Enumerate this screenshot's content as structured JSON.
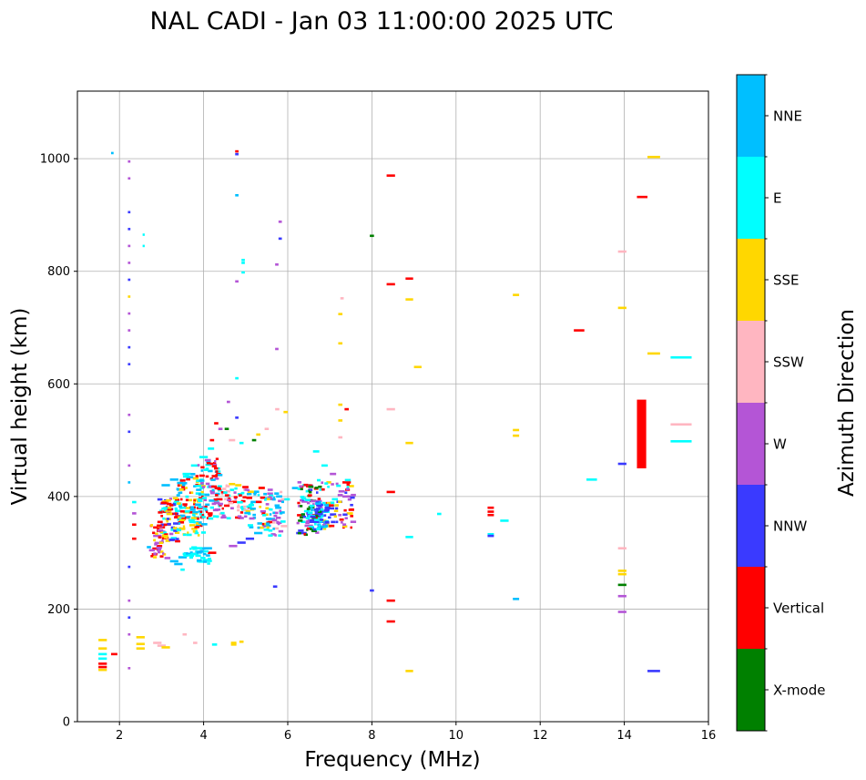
{
  "chart_data": {
    "type": "scatter",
    "title": "NAL CADI - Jan 03 11:00:00 2025 UTC",
    "xlabel": "Frequency (MHz)",
    "ylabel": "Virtual height (km)",
    "xlim": [
      1,
      16
    ],
    "ylim": [
      0,
      1120
    ],
    "xticks": [
      2,
      4,
      6,
      8,
      10,
      12,
      14,
      16
    ],
    "yticks": [
      0,
      200,
      400,
      600,
      800,
      1000
    ],
    "grid": true,
    "colorbar": {
      "label": "Azimuth Direction",
      "position": "right",
      "categories": [
        "X-mode",
        "Vertical",
        "NNW",
        "W",
        "SSW",
        "SSE",
        "E",
        "NNE"
      ],
      "colors": [
        "#008000",
        "#ff0000",
        "#3a3aff",
        "#b455d6",
        "#ffb6c1",
        "#ffd700",
        "#00ffff",
        "#00bfff"
      ]
    },
    "segments_note": "each echo segment: [freq_start_MHz, freq_end_MHz, height_km, category_index]",
    "segments": [
      [
        1.8,
        1.86,
        1010,
        7
      ],
      [
        2.2,
        2.26,
        995,
        3
      ],
      [
        2.2,
        2.26,
        965,
        3
      ],
      [
        2.2,
        2.26,
        905,
        2
      ],
      [
        2.2,
        2.26,
        875,
        2
      ],
      [
        2.2,
        2.26,
        845,
        3
      ],
      [
        2.2,
        2.26,
        815,
        3
      ],
      [
        2.2,
        2.26,
        785,
        2
      ],
      [
        2.2,
        2.26,
        755,
        5
      ],
      [
        2.2,
        2.26,
        725,
        3
      ],
      [
        2.2,
        2.26,
        695,
        3
      ],
      [
        2.2,
        2.26,
        665,
        2
      ],
      [
        2.2,
        2.26,
        635,
        2
      ],
      [
        2.2,
        2.26,
        545,
        3
      ],
      [
        2.2,
        2.26,
        515,
        2
      ],
      [
        2.2,
        2.26,
        455,
        3
      ],
      [
        2.2,
        2.26,
        425,
        7
      ],
      [
        2.2,
        2.26,
        275,
        2
      ],
      [
        2.2,
        2.26,
        215,
        3
      ],
      [
        2.2,
        2.26,
        185,
        2
      ],
      [
        2.2,
        2.26,
        155,
        3
      ],
      [
        2.2,
        2.26,
        95,
        3
      ],
      [
        2.55,
        2.6,
        865,
        6
      ],
      [
        2.55,
        2.6,
        845,
        6
      ],
      [
        4.75,
        4.83,
        1013,
        1
      ],
      [
        4.75,
        4.83,
        1008,
        2
      ],
      [
        4.75,
        4.83,
        935,
        7
      ],
      [
        4.9,
        4.98,
        820,
        6
      ],
      [
        4.9,
        4.98,
        815,
        6
      ],
      [
        4.9,
        4.98,
        798,
        6
      ],
      [
        4.75,
        4.83,
        782,
        3
      ],
      [
        5.78,
        5.86,
        888,
        3
      ],
      [
        5.78,
        5.86,
        858,
        2
      ],
      [
        5.7,
        5.78,
        812,
        3
      ],
      [
        5.7,
        5.78,
        662,
        3
      ],
      [
        4.75,
        4.83,
        610,
        6
      ],
      [
        4.55,
        4.63,
        568,
        3
      ],
      [
        4.75,
        4.83,
        540,
        2
      ],
      [
        7.95,
        8.05,
        863,
        0
      ],
      [
        8.35,
        8.55,
        970,
        1
      ],
      [
        8.35,
        8.55,
        777,
        1
      ],
      [
        8.8,
        8.98,
        787,
        1
      ],
      [
        8.8,
        8.98,
        750,
        5
      ],
      [
        7.25,
        7.33,
        752,
        4
      ],
      [
        7.2,
        7.3,
        724,
        5
      ],
      [
        7.2,
        7.3,
        672,
        5
      ],
      [
        7.2,
        7.3,
        563,
        5
      ],
      [
        7.35,
        7.45,
        555,
        1
      ],
      [
        7.2,
        7.3,
        535,
        5
      ],
      [
        9.0,
        9.18,
        630,
        5
      ],
      [
        8.8,
        8.98,
        495,
        5
      ],
      [
        8.35,
        8.55,
        555,
        4
      ],
      [
        8.35,
        8.55,
        408,
        1
      ],
      [
        8.35,
        8.55,
        215,
        1
      ],
      [
        8.35,
        8.55,
        178,
        1
      ],
      [
        8.8,
        8.98,
        90,
        5
      ],
      [
        8.8,
        8.98,
        328,
        6
      ],
      [
        7.95,
        8.05,
        233,
        2
      ],
      [
        11.35,
        11.5,
        758,
        5
      ],
      [
        11.35,
        11.5,
        518,
        5
      ],
      [
        11.35,
        11.5,
        508,
        5
      ],
      [
        11.35,
        11.5,
        218,
        7
      ],
      [
        12.8,
        13.05,
        695,
        1
      ],
      [
        13.1,
        13.35,
        430,
        6
      ],
      [
        13.85,
        14.05,
        835,
        4
      ],
      [
        13.85,
        14.05,
        735,
        5
      ],
      [
        13.85,
        14.05,
        458,
        2
      ],
      [
        13.85,
        14.05,
        308,
        4
      ],
      [
        13.85,
        14.05,
        268,
        5
      ],
      [
        13.85,
        14.05,
        262,
        5
      ],
      [
        13.85,
        14.05,
        243,
        0
      ],
      [
        13.85,
        14.05,
        223,
        3
      ],
      [
        13.85,
        14.05,
        195,
        3
      ],
      [
        14.3,
        14.55,
        932,
        1
      ],
      [
        14.55,
        14.85,
        1003,
        5
      ],
      [
        14.55,
        14.85,
        654,
        5
      ],
      [
        14.55,
        14.85,
        90,
        2
      ],
      [
        15.1,
        15.6,
        647,
        6
      ],
      [
        15.1,
        15.6,
        528,
        4
      ],
      [
        15.1,
        15.6,
        498,
        6
      ],
      [
        10.75,
        10.9,
        380,
        1
      ],
      [
        10.75,
        10.9,
        373,
        1
      ],
      [
        10.75,
        10.9,
        367,
        1
      ],
      [
        10.75,
        10.9,
        333,
        6
      ],
      [
        10.75,
        10.9,
        330,
        2
      ],
      [
        11.05,
        11.25,
        357,
        6
      ],
      [
        9.55,
        9.65,
        369,
        6
      ],
      [
        1.5,
        1.7,
        145,
        5
      ],
      [
        1.5,
        1.7,
        130,
        5
      ],
      [
        1.5,
        1.7,
        120,
        6
      ],
      [
        1.5,
        1.7,
        112,
        6
      ],
      [
        1.5,
        1.7,
        103,
        1
      ],
      [
        1.5,
        1.7,
        97,
        1
      ],
      [
        1.5,
        1.7,
        92,
        5
      ],
      [
        1.8,
        1.95,
        120,
        1
      ],
      [
        2.4,
        2.6,
        150,
        5
      ],
      [
        2.4,
        2.6,
        138,
        5
      ],
      [
        2.4,
        2.6,
        130,
        5
      ],
      [
        2.8,
        3.0,
        140,
        4
      ],
      [
        2.9,
        3.1,
        135,
        4
      ],
      [
        3.0,
        3.2,
        132,
        5
      ],
      [
        3.5,
        3.6,
        155,
        4
      ],
      [
        3.75,
        3.85,
        140,
        4
      ],
      [
        4.2,
        4.32,
        137,
        6
      ],
      [
        4.65,
        4.78,
        140,
        5
      ],
      [
        4.65,
        4.78,
        137,
        5
      ],
      [
        4.85,
        4.95,
        142,
        5
      ],
      [
        5.65,
        5.75,
        240,
        2
      ],
      [
        2.3,
        2.4,
        390,
        6
      ],
      [
        2.3,
        2.4,
        370,
        3
      ],
      [
        2.3,
        2.4,
        350,
        1
      ],
      [
        2.3,
        2.4,
        325,
        1
      ],
      [
        2.65,
        2.75,
        310,
        7
      ],
      [
        2.8,
        3.0,
        345,
        1
      ],
      [
        2.8,
        3.0,
        330,
        3
      ],
      [
        3.2,
        3.4,
        285,
        7
      ],
      [
        3.4,
        3.6,
        292,
        7
      ],
      [
        3.6,
        3.8,
        298,
        7
      ],
      [
        3.8,
        4.0,
        302,
        7
      ],
      [
        4.0,
        4.2,
        308,
        7
      ],
      [
        4.1,
        4.3,
        300,
        1
      ],
      [
        4.6,
        4.8,
        312,
        3
      ],
      [
        4.8,
        5.0,
        318,
        2
      ],
      [
        5.0,
        5.2,
        325,
        2
      ],
      [
        5.2,
        5.4,
        335,
        7
      ],
      [
        5.4,
        5.6,
        348,
        7
      ],
      [
        5.5,
        5.7,
        360,
        7
      ],
      [
        5.7,
        5.85,
        380,
        7
      ],
      [
        5.9,
        6.05,
        395,
        6
      ],
      [
        6.2,
        6.45,
        335,
        2
      ],
      [
        6.4,
        6.6,
        348,
        3
      ],
      [
        6.6,
        6.85,
        355,
        2
      ],
      [
        6.6,
        6.85,
        365,
        2
      ],
      [
        7.0,
        7.15,
        368,
        2
      ],
      [
        7.4,
        7.55,
        370,
        5
      ],
      [
        7.3,
        7.5,
        425,
        1
      ],
      [
        7.3,
        7.5,
        400,
        3
      ],
      [
        3.0,
        3.2,
        420,
        7
      ],
      [
        3.2,
        3.4,
        430,
        7
      ],
      [
        3.5,
        3.7,
        440,
        6
      ],
      [
        3.7,
        3.9,
        455,
        6
      ],
      [
        3.9,
        4.1,
        470,
        6
      ],
      [
        4.1,
        4.25,
        485,
        6
      ],
      [
        4.15,
        4.25,
        500,
        1
      ],
      [
        4.25,
        4.35,
        530,
        1
      ],
      [
        4.35,
        4.45,
        520,
        3
      ],
      [
        4.5,
        4.6,
        520,
        0
      ],
      [
        4.6,
        4.75,
        500,
        4
      ],
      [
        4.85,
        4.95,
        495,
        6
      ],
      [
        5.15,
        5.25,
        500,
        0
      ],
      [
        5.25,
        5.35,
        510,
        5
      ],
      [
        5.45,
        5.55,
        520,
        4
      ],
      [
        5.7,
        5.8,
        555,
        4
      ],
      [
        5.9,
        6.0,
        550,
        5
      ],
      [
        6.1,
        6.25,
        415,
        7
      ],
      [
        6.35,
        6.55,
        420,
        6
      ],
      [
        6.6,
        6.75,
        480,
        6
      ],
      [
        6.8,
        6.95,
        455,
        6
      ],
      [
        7.0,
        7.15,
        440,
        3
      ],
      [
        7.2,
        7.3,
        505,
        4
      ],
      [
        3.3,
        3.5,
        280,
        7
      ],
      [
        3.45,
        3.55,
        270,
        6
      ],
      [
        4.6,
        4.75,
        422,
        5
      ],
      [
        4.75,
        4.9,
        420,
        5
      ],
      [
        5.3,
        5.45,
        415,
        5
      ],
      [
        5.55,
        5.65,
        405,
        3
      ],
      [
        4.3,
        4.45,
        395,
        1
      ]
    ],
    "dense_clusters_note": "dense echo clusters: [f_min, f_max, h_min, h_max, count, [category indices], seed]",
    "dense_clusters": [
      [
        2.9,
        3.35,
        320,
        400,
        70,
        [
          1,
          6,
          3,
          2,
          5
        ],
        11
      ],
      [
        3.35,
        3.95,
        330,
        440,
        130,
        [
          6,
          7,
          5,
          1
        ],
        12
      ],
      [
        3.85,
        4.35,
        360,
        470,
        80,
        [
          6,
          7,
          1,
          3
        ],
        13
      ],
      [
        4.3,
        4.95,
        360,
        420,
        55,
        [
          1,
          3,
          6,
          4
        ],
        14
      ],
      [
        4.9,
        5.55,
        340,
        420,
        60,
        [
          6,
          7,
          1,
          3,
          5
        ],
        15
      ],
      [
        5.5,
        5.85,
        330,
        410,
        35,
        [
          6,
          3,
          4,
          7
        ],
        16
      ],
      [
        6.2,
        6.8,
        330,
        430,
        90,
        [
          6,
          2,
          3,
          0,
          1
        ],
        17
      ],
      [
        6.8,
        7.5,
        340,
        430,
        60,
        [
          6,
          2,
          1,
          3,
          5
        ],
        18
      ],
      [
        6.45,
        6.9,
        340,
        390,
        55,
        [
          2,
          2,
          6,
          7
        ],
        19
      ],
      [
        2.7,
        3.1,
        290,
        350,
        40,
        [
          1,
          5,
          3
        ],
        20
      ],
      [
        3.5,
        4.1,
        280,
        310,
        30,
        [
          7,
          6,
          6
        ],
        21
      ]
    ],
    "thick_bar": {
      "freq": [
        14.3,
        14.52
      ],
      "height": [
        450,
        572
      ],
      "category": 1
    }
  }
}
